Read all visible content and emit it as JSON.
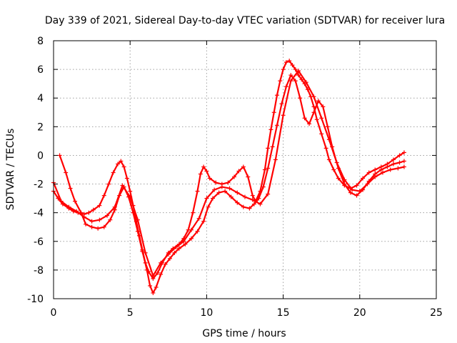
{
  "chart_data": {
    "type": "scatter",
    "title": "Day 339 of 2021, Sidereal Day-to-day VTEC variation (SDTVAR) for receiver lura",
    "xlabel": "GPS time / hours",
    "ylabel": "SDTVAR / TECUs",
    "xlim": [
      0,
      25
    ],
    "ylim": [
      -10,
      8
    ],
    "x_ticks": [
      0,
      5,
      10,
      15,
      20,
      25
    ],
    "y_ticks": [
      -10,
      -8,
      -6,
      -4,
      -2,
      0,
      2,
      4,
      6,
      8
    ],
    "x_tick_labels": [
      "0",
      "5",
      "10",
      "15",
      "20",
      "25"
    ],
    "y_tick_labels": [
      "-10",
      "-8",
      "-6",
      "-4",
      "-2",
      "0",
      "2",
      "4",
      "6",
      "8"
    ],
    "grid": true,
    "marker": "+",
    "marker_color": "#ff0000",
    "series": [
      {
        "x": [
          0.0,
          0.3,
          0.6,
          1.0,
          1.3,
          1.6,
          2.0,
          2.3,
          2.6,
          3.0,
          3.3,
          3.6,
          3.9,
          4.2,
          4.4,
          4.6,
          4.8,
          5.0,
          5.2,
          5.4,
          5.6,
          5.8,
          6.0,
          6.2,
          6.5,
          6.8,
          7.1,
          7.5,
          7.8,
          8.2,
          8.5,
          8.8,
          9.1,
          9.4,
          9.6,
          9.8,
          10.0,
          10.2,
          10.6,
          11.0,
          11.4,
          11.8,
          12.1,
          12.4,
          12.7,
          13.0,
          13.2,
          13.5,
          13.8,
          14.0,
          14.2,
          14.4,
          14.6,
          14.8,
          15.0,
          15.2,
          15.4,
          15.6,
          15.8,
          16.0,
          16.2,
          16.4,
          16.6,
          16.8,
          17.0,
          17.2,
          17.5,
          17.8,
          18.0,
          18.3,
          18.6,
          19.0,
          19.4,
          19.8,
          20.2,
          20.6,
          21.0,
          21.4,
          21.8,
          22.2,
          22.6,
          22.9
        ],
        "y": [
          -2.5,
          -3.0,
          -3.4,
          -3.7,
          -3.9,
          -4.0,
          -4.1,
          -4.0,
          -3.8,
          -3.5,
          -2.8,
          -2.0,
          -1.2,
          -0.6,
          -0.4,
          -0.8,
          -1.6,
          -2.5,
          -3.5,
          -4.6,
          -5.6,
          -6.6,
          -7.5,
          -8.1,
          -8.6,
          -8.2,
          -7.5,
          -6.8,
          -6.5,
          -6.2,
          -5.8,
          -5.2,
          -4.0,
          -2.5,
          -1.3,
          -0.8,
          -1.1,
          -1.6,
          -1.9,
          -2.0,
          -1.9,
          -1.5,
          -1.1,
          -0.8,
          -1.5,
          -2.8,
          -3.2,
          -2.5,
          -1.0,
          0.5,
          1.8,
          3.0,
          4.2,
          5.2,
          6.0,
          6.5,
          6.6,
          6.3,
          6.0,
          5.6,
          5.3,
          5.0,
          4.6,
          4.1,
          3.4,
          2.5,
          1.5,
          0.5,
          -0.3,
          -1.0,
          -1.6,
          -2.1,
          -2.3,
          -2.1,
          -1.6,
          -1.2,
          -1.0,
          -0.8,
          -0.6,
          -0.3,
          0.0,
          0.2
        ]
      },
      {
        "x": [
          0.4,
          0.8,
          1.1,
          1.4,
          1.8,
          2.1,
          2.5,
          2.9,
          3.3,
          3.7,
          4.0,
          4.3,
          4.6,
          4.9,
          5.2,
          5.5,
          5.8,
          6.1,
          6.3,
          6.5,
          6.7,
          7.0,
          7.3,
          7.6,
          7.9,
          8.2,
          8.6,
          9.0,
          9.4,
          9.8,
          10.1,
          10.4,
          10.8,
          11.2,
          11.6,
          12.0,
          12.4,
          12.8,
          13.1,
          13.4,
          13.7,
          14.0,
          14.3,
          14.6,
          14.9,
          15.2,
          15.5,
          15.8,
          16.1,
          16.4,
          16.7,
          17.0,
          17.3,
          17.6,
          17.9,
          18.2,
          18.6,
          19.0,
          19.4,
          19.8,
          20.2,
          20.6,
          21.0,
          21.4,
          21.8,
          22.2,
          22.6,
          22.9
        ],
        "y": [
          0.0,
          -1.2,
          -2.3,
          -3.2,
          -4.0,
          -4.8,
          -5.0,
          -5.1,
          -5.0,
          -4.5,
          -3.8,
          -2.8,
          -2.2,
          -2.9,
          -4.0,
          -5.3,
          -6.7,
          -8.0,
          -9.1,
          -9.6,
          -9.2,
          -8.3,
          -7.6,
          -7.2,
          -6.8,
          -6.5,
          -6.2,
          -5.8,
          -5.3,
          -4.6,
          -3.6,
          -3.0,
          -2.6,
          -2.5,
          -2.9,
          -3.3,
          -3.6,
          -3.7,
          -3.4,
          -3.0,
          -2.2,
          -0.9,
          0.6,
          2.1,
          3.6,
          4.8,
          5.6,
          5.2,
          4.0,
          2.6,
          2.2,
          3.0,
          3.8,
          3.4,
          2.0,
          0.6,
          -0.9,
          -2.0,
          -2.6,
          -2.8,
          -2.4,
          -1.8,
          -1.3,
          -1.0,
          -0.8,
          -0.6,
          -0.5,
          -0.4
        ]
      },
      {
        "x": [
          0.0,
          0.5,
          1.0,
          1.5,
          2.0,
          2.5,
          3.0,
          3.5,
          4.0,
          4.5,
          5.0,
          5.5,
          6.0,
          6.5,
          7.0,
          7.5,
          8.0,
          8.5,
          9.0,
          9.5,
          10.0,
          10.5,
          11.0,
          11.5,
          12.0,
          12.5,
          13.0,
          13.5,
          14.0,
          14.5,
          15.0,
          15.5,
          16.0,
          16.5,
          17.0,
          17.5,
          18.0,
          18.5,
          19.0,
          19.5,
          20.0,
          20.5,
          21.0,
          21.5,
          22.0,
          22.5,
          22.9
        ],
        "y": [
          -1.9,
          -3.2,
          -3.6,
          -3.9,
          -4.3,
          -4.6,
          -4.5,
          -4.2,
          -3.6,
          -2.1,
          -2.9,
          -4.5,
          -6.8,
          -8.4,
          -7.5,
          -6.9,
          -6.4,
          -6.0,
          -5.2,
          -4.4,
          -3.0,
          -2.4,
          -2.2,
          -2.3,
          -2.6,
          -2.9,
          -3.1,
          -3.4,
          -2.7,
          -0.3,
          2.8,
          5.2,
          5.9,
          5.1,
          4.1,
          2.6,
          1.1,
          -0.5,
          -1.7,
          -2.4,
          -2.5,
          -2.0,
          -1.5,
          -1.2,
          -1.0,
          -0.9,
          -0.8
        ]
      }
    ]
  }
}
